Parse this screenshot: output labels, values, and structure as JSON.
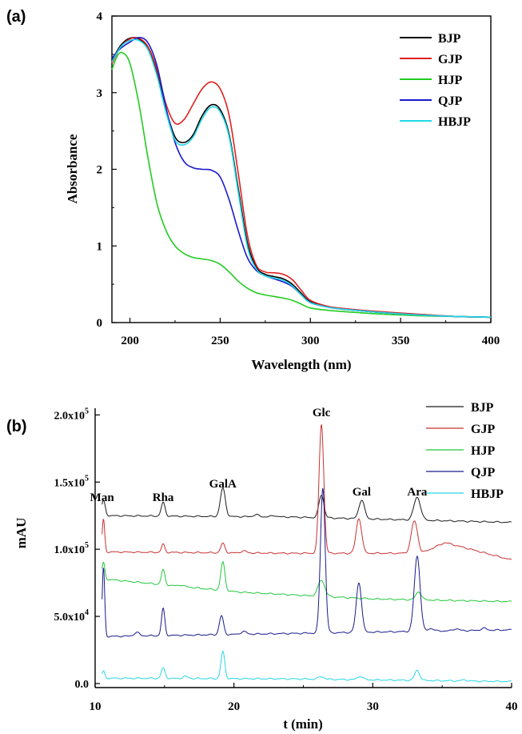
{
  "chart_data": [
    {
      "type": "line",
      "panel_label": "(a)",
      "xlabel": "Wavelength (nm)",
      "ylabel": "Absorbance",
      "xlim": [
        190,
        400
      ],
      "ylim": [
        0,
        4
      ],
      "xticks": [
        200,
        250,
        300,
        350,
        400
      ],
      "yticks": [
        0,
        1,
        2,
        3,
        4
      ],
      "grid": false,
      "legend_position": "top-right",
      "series": [
        {
          "name": "BJP",
          "color": "#000000",
          "points": [
            [
              190,
              3.42
            ],
            [
              195,
              3.62
            ],
            [
              200,
              3.71
            ],
            [
              205,
              3.7
            ],
            [
              210,
              3.58
            ],
            [
              215,
              3.25
            ],
            [
              220,
              2.78
            ],
            [
              225,
              2.42
            ],
            [
              230,
              2.35
            ],
            [
              235,
              2.45
            ],
            [
              240,
              2.7
            ],
            [
              245,
              2.84
            ],
            [
              250,
              2.78
            ],
            [
              255,
              2.45
            ],
            [
              260,
              1.75
            ],
            [
              265,
              1.05
            ],
            [
              270,
              0.72
            ],
            [
              275,
              0.63
            ],
            [
              280,
              0.6
            ],
            [
              285,
              0.57
            ],
            [
              290,
              0.5
            ],
            [
              295,
              0.38
            ],
            [
              300,
              0.27
            ],
            [
              310,
              0.2
            ],
            [
              320,
              0.17
            ],
            [
              340,
              0.13
            ],
            [
              360,
              0.1
            ],
            [
              380,
              0.08
            ],
            [
              400,
              0.07
            ]
          ]
        },
        {
          "name": "GJP",
          "color": "#e02020",
          "points": [
            [
              190,
              3.38
            ],
            [
              195,
              3.6
            ],
            [
              200,
              3.7
            ],
            [
              205,
              3.71
            ],
            [
              210,
              3.6
            ],
            [
              215,
              3.3
            ],
            [
              220,
              2.85
            ],
            [
              225,
              2.6
            ],
            [
              230,
              2.65
            ],
            [
              235,
              2.85
            ],
            [
              240,
              3.05
            ],
            [
              245,
              3.14
            ],
            [
              250,
              3.05
            ],
            [
              255,
              2.7
            ],
            [
              260,
              1.95
            ],
            [
              265,
              1.15
            ],
            [
              270,
              0.75
            ],
            [
              275,
              0.66
            ],
            [
              280,
              0.65
            ],
            [
              285,
              0.63
            ],
            [
              290,
              0.56
            ],
            [
              295,
              0.42
            ],
            [
              300,
              0.29
            ],
            [
              310,
              0.21
            ],
            [
              320,
              0.18
            ],
            [
              340,
              0.14
            ],
            [
              360,
              0.11
            ],
            [
              380,
              0.08
            ],
            [
              400,
              0.07
            ]
          ]
        },
        {
          "name": "HJP",
          "color": "#22cc22",
          "points": [
            [
              190,
              3.3
            ],
            [
              193,
              3.48
            ],
            [
              196,
              3.52
            ],
            [
              200,
              3.38
            ],
            [
              205,
              2.85
            ],
            [
              210,
              2.15
            ],
            [
              215,
              1.55
            ],
            [
              220,
              1.2
            ],
            [
              225,
              1.0
            ],
            [
              230,
              0.9
            ],
            [
              235,
              0.85
            ],
            [
              240,
              0.83
            ],
            [
              245,
              0.81
            ],
            [
              250,
              0.76
            ],
            [
              255,
              0.66
            ],
            [
              260,
              0.54
            ],
            [
              265,
              0.45
            ],
            [
              270,
              0.39
            ],
            [
              275,
              0.36
            ],
            [
              280,
              0.34
            ],
            [
              285,
              0.32
            ],
            [
              290,
              0.29
            ],
            [
              295,
              0.24
            ],
            [
              300,
              0.19
            ],
            [
              310,
              0.16
            ],
            [
              320,
              0.14
            ],
            [
              340,
              0.11
            ],
            [
              360,
              0.09
            ],
            [
              380,
              0.08
            ],
            [
              400,
              0.07
            ]
          ]
        },
        {
          "name": "QJP",
          "color": "#1a1acc",
          "points": [
            [
              190,
              3.45
            ],
            [
              195,
              3.58
            ],
            [
              200,
              3.66
            ],
            [
              205,
              3.72
            ],
            [
              210,
              3.65
            ],
            [
              215,
              3.35
            ],
            [
              220,
              2.8
            ],
            [
              225,
              2.35
            ],
            [
              230,
              2.1
            ],
            [
              235,
              2.02
            ],
            [
              240,
              2.0
            ],
            [
              245,
              1.99
            ],
            [
              250,
              1.9
            ],
            [
              255,
              1.6
            ],
            [
              260,
              1.2
            ],
            [
              265,
              0.85
            ],
            [
              270,
              0.68
            ],
            [
              275,
              0.61
            ],
            [
              280,
              0.57
            ],
            [
              285,
              0.53
            ],
            [
              290,
              0.47
            ],
            [
              295,
              0.36
            ],
            [
              300,
              0.26
            ],
            [
              310,
              0.2
            ],
            [
              320,
              0.17
            ],
            [
              340,
              0.13
            ],
            [
              360,
              0.1
            ],
            [
              380,
              0.08
            ],
            [
              400,
              0.07
            ]
          ]
        },
        {
          "name": "HBJP",
          "color": "#22d8e6",
          "points": [
            [
              190,
              3.4
            ],
            [
              195,
              3.6
            ],
            [
              200,
              3.68
            ],
            [
              205,
              3.68
            ],
            [
              210,
              3.56
            ],
            [
              215,
              3.22
            ],
            [
              220,
              2.74
            ],
            [
              225,
              2.38
            ],
            [
              230,
              2.32
            ],
            [
              235,
              2.42
            ],
            [
              240,
              2.66
            ],
            [
              245,
              2.81
            ],
            [
              250,
              2.75
            ],
            [
              255,
              2.42
            ],
            [
              260,
              1.7
            ],
            [
              265,
              1.0
            ],
            [
              270,
              0.7
            ],
            [
              275,
              0.61
            ],
            [
              280,
              0.58
            ],
            [
              285,
              0.55
            ],
            [
              290,
              0.48
            ],
            [
              295,
              0.36
            ],
            [
              300,
              0.26
            ],
            [
              310,
              0.2
            ],
            [
              320,
              0.17
            ],
            [
              340,
              0.13
            ],
            [
              360,
              0.1
            ],
            [
              380,
              0.08
            ],
            [
              400,
              0.07
            ]
          ]
        }
      ]
    },
    {
      "type": "line",
      "panel_label": "(b)",
      "xlabel": "t (min)",
      "ylabel": "mAU",
      "xlim": [
        10,
        40
      ],
      "ylim": [
        -3000,
        205000
      ],
      "xticks": [
        10,
        20,
        30,
        40
      ],
      "yticks": [
        {
          "value": 0,
          "base": "0.0",
          "exp": ""
        },
        {
          "value": 50000,
          "base": "5.0x10",
          "exp": "4"
        },
        {
          "value": 100000,
          "base": "1.0x10",
          "exp": "5"
        },
        {
          "value": 150000,
          "base": "1.5x10",
          "exp": "5"
        },
        {
          "value": 200000,
          "base": "2.0x10",
          "exp": "5"
        }
      ],
      "grid": false,
      "legend_position": "top-right",
      "annotations": [
        {
          "text": "Man",
          "x": 10.5,
          "y": 136000
        },
        {
          "text": "Rha",
          "x": 14.9,
          "y": 136000
        },
        {
          "text": "GalA",
          "x": 19.2,
          "y": 146000
        },
        {
          "text": "Glc",
          "x": 26.3,
          "y": 199000
        },
        {
          "text": "Gal",
          "x": 29.2,
          "y": 140000
        },
        {
          "text": "Ara",
          "x": 33.2,
          "y": 140000
        }
      ],
      "series": [
        {
          "name": "BJP",
          "color": "#1a1a1a",
          "baseline": [
            [
              10.5,
              125000
            ],
            [
              24,
              124000
            ],
            [
              40,
              120000
            ]
          ],
          "peaks": [
            [
              10.6,
              11000,
              0.13
            ],
            [
              14.9,
              10000,
              0.14
            ],
            [
              19.2,
              21000,
              0.18
            ],
            [
              26.3,
              17000,
              0.18
            ],
            [
              29.2,
              14000,
              0.2
            ],
            [
              33.2,
              17000,
              0.24
            ],
            [
              21.6,
              1500,
              0.2
            ],
            [
              22.9,
              1000,
              0.2
            ]
          ]
        },
        {
          "name": "GJP",
          "color": "#c83232",
          "baseline": [
            [
              10.5,
              98000
            ],
            [
              24,
              97000
            ],
            [
              33.5,
              97000
            ],
            [
              35.2,
              105000
            ],
            [
              40,
              92000
            ]
          ],
          "peaks": [
            [
              10.6,
              24000,
              0.09
            ],
            [
              14.9,
              6000,
              0.12
            ],
            [
              19.2,
              7000,
              0.15
            ],
            [
              26.3,
              96000,
              0.17
            ],
            [
              29.0,
              26000,
              0.2
            ],
            [
              33.0,
              24000,
              0.23
            ],
            [
              20.7,
              1500,
              0.2
            ]
          ]
        },
        {
          "name": "HJP",
          "color": "#22c83c",
          "baseline": [
            [
              10.5,
              78000
            ],
            [
              20.5,
              68000
            ],
            [
              30,
              63000
            ],
            [
              40,
              61000
            ]
          ],
          "peaks": [
            [
              10.6,
              12000,
              0.1
            ],
            [
              14.9,
              11000,
              0.13
            ],
            [
              19.2,
              21000,
              0.15
            ],
            [
              26.3,
              12000,
              0.24
            ],
            [
              33.3,
              6000,
              0.2
            ],
            [
              16.2,
              1000,
              0.2
            ]
          ]
        },
        {
          "name": "QJP",
          "color": "#1a1a8c",
          "baseline": [
            [
              10.5,
              35000
            ],
            [
              40,
              40000
            ]
          ],
          "peaks": [
            [
              10.6,
              51000,
              0.09
            ],
            [
              14.9,
              20000,
              0.12
            ],
            [
              19.1,
              14000,
              0.15
            ],
            [
              26.4,
              108000,
              0.17
            ],
            [
              29.0,
              37000,
              0.19
            ],
            [
              33.2,
              56000,
              0.21
            ],
            [
              13.0,
              2500,
              0.2
            ],
            [
              20.7,
              2000,
              0.2
            ],
            [
              34.2,
              2000,
              0.2
            ],
            [
              36.0,
              1500,
              0.2
            ],
            [
              38.0,
              1500,
              0.2
            ]
          ]
        },
        {
          "name": "HBJP",
          "color": "#28d6e6",
          "baseline": [
            [
              10.5,
              4000
            ],
            [
              24,
              3500
            ],
            [
              40,
              1500
            ]
          ],
          "peaks": [
            [
              10.6,
              5000,
              0.1
            ],
            [
              14.9,
              7500,
              0.14
            ],
            [
              16.5,
              1500,
              0.2
            ],
            [
              19.2,
              20000,
              0.14
            ],
            [
              26.3,
              2000,
              0.2
            ],
            [
              29.1,
              2500,
              0.2
            ],
            [
              33.2,
              7500,
              0.18
            ],
            [
              36.6,
              800,
              0.2
            ]
          ]
        }
      ]
    }
  ]
}
